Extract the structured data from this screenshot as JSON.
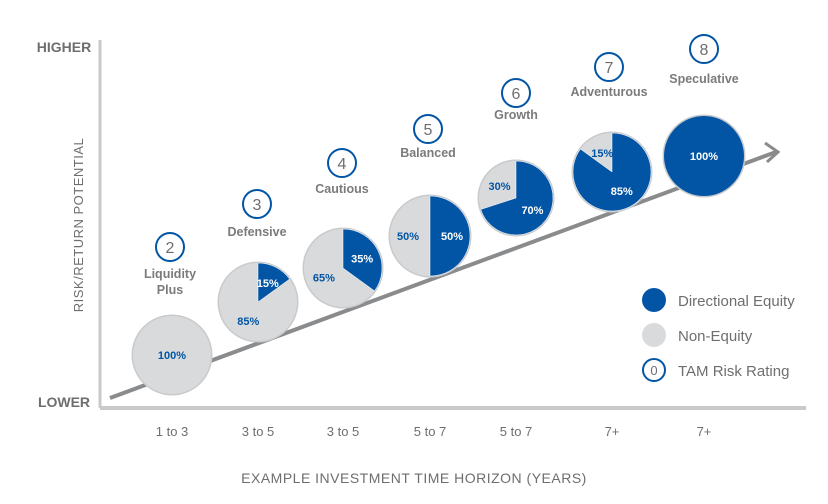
{
  "chart_data": {
    "type": "pie",
    "title": "",
    "xlabel": "EXAMPLE INVESTMENT TIME HORIZON (YEARS)",
    "ylabel": "RISK/RETURN POTENTIAL",
    "y_top_label": "HIGHER",
    "y_bottom_label": "LOWER",
    "legend": [
      {
        "label": "Directional Equity",
        "color": "#0255a5",
        "kind": "filled"
      },
      {
        "label": "Non-Equity",
        "color": "#d9dadc",
        "kind": "filled"
      },
      {
        "label": "TAM Risk Rating",
        "symbol": "0",
        "kind": "ring"
      }
    ],
    "legend_position": "right",
    "portfolios": [
      {
        "rating": "2",
        "name": "Liquidity Plus",
        "horizon": "1 to 3",
        "equity": 0,
        "non_equity": 100,
        "equity_label": "",
        "non_equity_label": "100%"
      },
      {
        "rating": "3",
        "name": "Defensive",
        "horizon": "3 to 5",
        "equity": 15,
        "non_equity": 85,
        "equity_label": "15%",
        "non_equity_label": "85%"
      },
      {
        "rating": "4",
        "name": "Cautious",
        "horizon": "3 to 5",
        "equity": 35,
        "non_equity": 65,
        "equity_label": "35%",
        "non_equity_label": "65%"
      },
      {
        "rating": "5",
        "name": "Balanced",
        "horizon": "5 to 7",
        "equity": 50,
        "non_equity": 50,
        "equity_label": "50%",
        "non_equity_label": "50%"
      },
      {
        "rating": "6",
        "name": "Growth",
        "horizon": "5 to 7",
        "equity": 70,
        "non_equity": 30,
        "equity_label": "70%",
        "non_equity_label": "30%"
      },
      {
        "rating": "7",
        "name": "Adventurous",
        "horizon": "7+",
        "equity": 85,
        "non_equity": 15,
        "equity_label": "85%",
        "non_equity_label": "15%"
      },
      {
        "rating": "8",
        "name": "Speculative",
        "horizon": "7+",
        "equity": 100,
        "non_equity": 0,
        "equity_label": "100%",
        "non_equity_label": ""
      }
    ],
    "colors": {
      "equity": "#0255a5",
      "non_equity": "#d9dadc",
      "axis": "#c8c9cb",
      "text": "#6d6e70",
      "trend": "#8a8b8d"
    }
  }
}
